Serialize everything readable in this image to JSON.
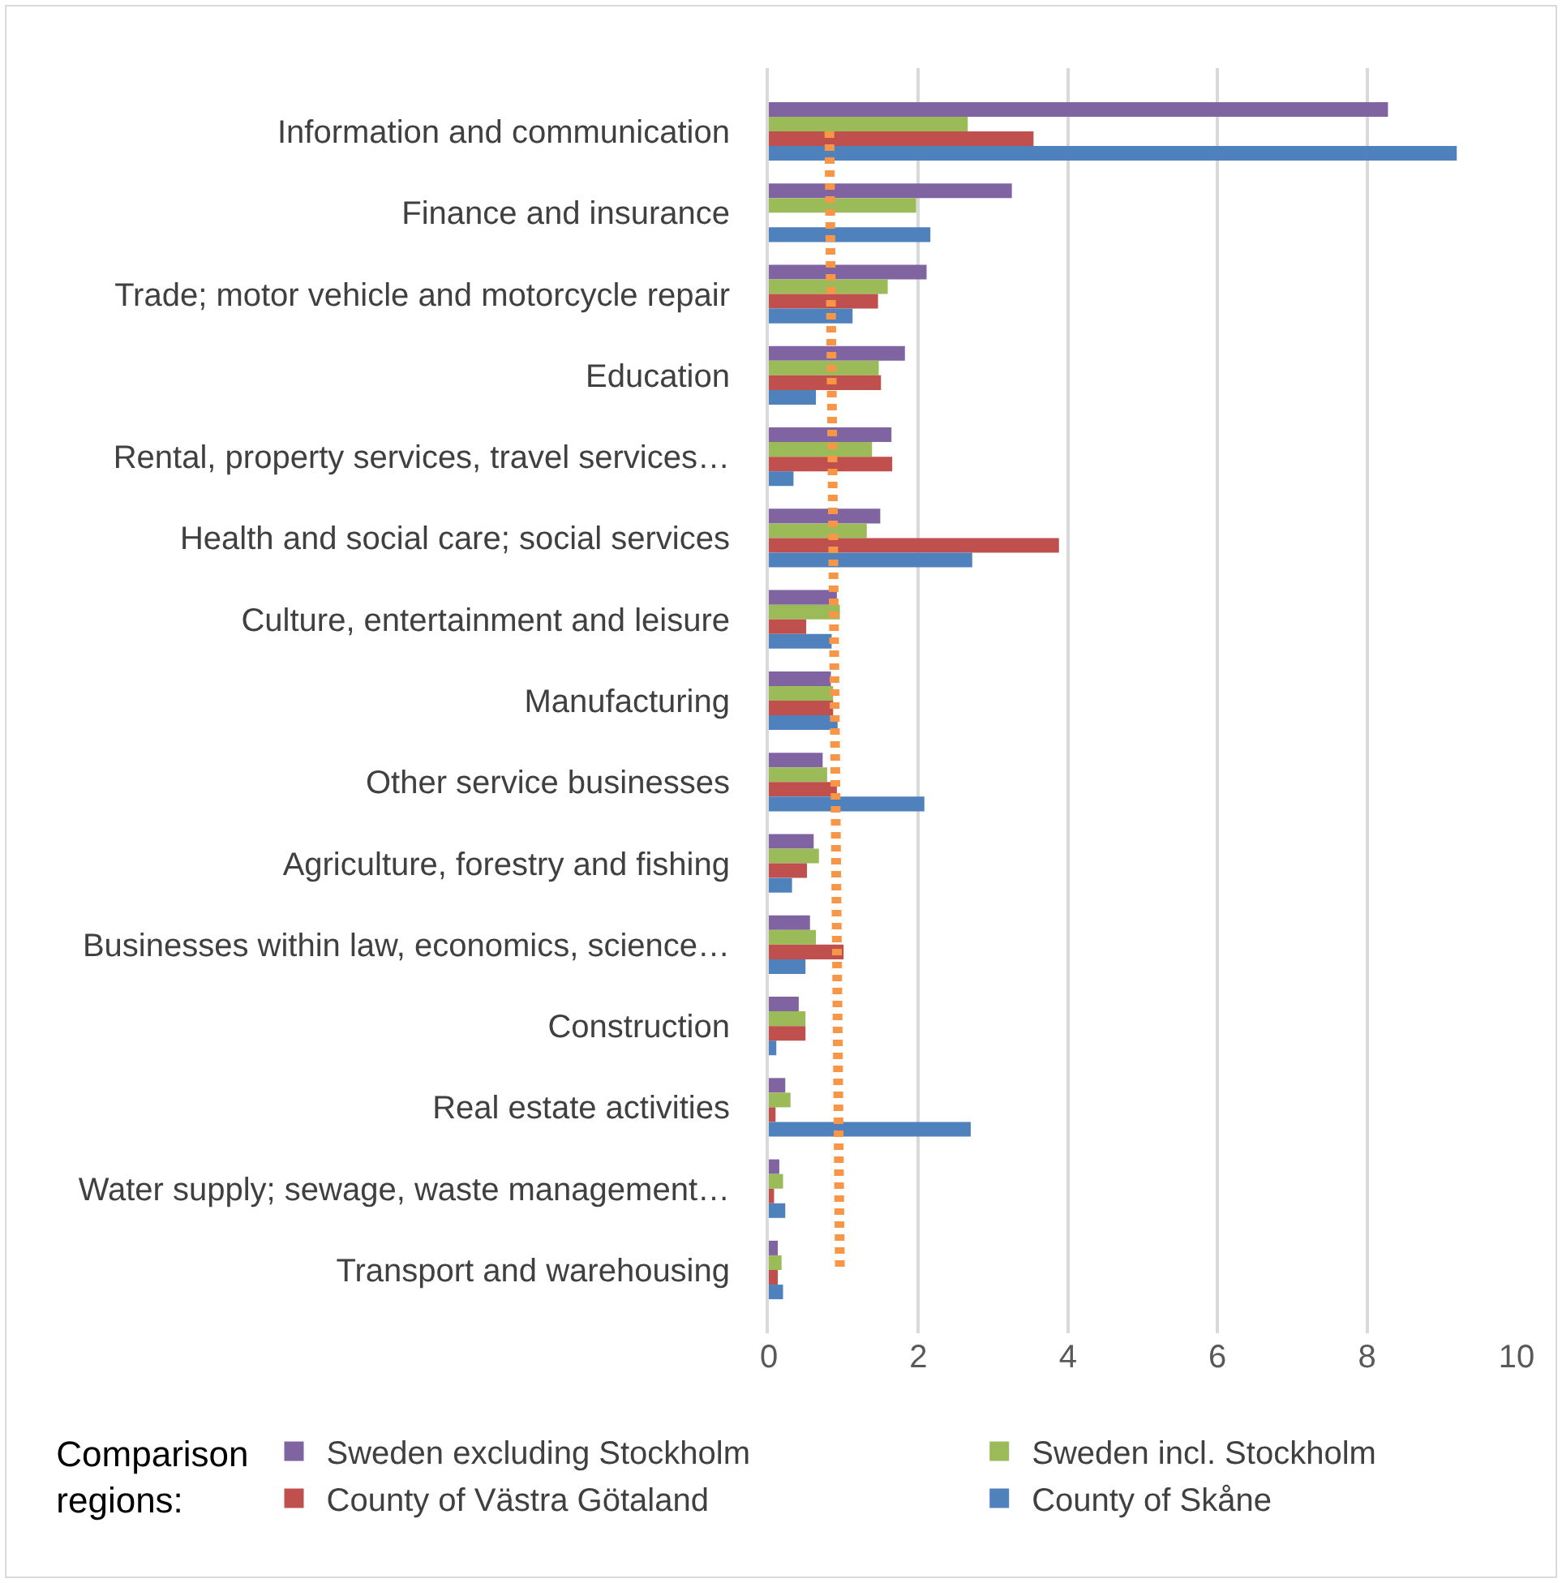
{
  "chart_data": {
    "type": "bar",
    "orientation": "horizontal",
    "categories": [
      "Information and communication",
      "Finance and insurance",
      "Trade; motor vehicle and motorcycle repair",
      "Education",
      "Rental, property services, travel services…",
      "Health and social care; social services",
      "Culture, entertainment and leisure",
      "Manufacturing",
      "Other service businesses",
      "Agriculture, forestry and fishing",
      "Businesses within law, economics, science…",
      "Construction",
      "Real estate activities",
      "Water supply; sewage, waste management…",
      "Transport and warehousing"
    ],
    "series": [
      {
        "name": "Sweden excluding Stockholm",
        "color": "#8064a2",
        "values": [
          8.28,
          3.25,
          2.11,
          1.82,
          1.64,
          1.49,
          0.91,
          0.83,
          0.72,
          0.6,
          0.55,
          0.4,
          0.22,
          0.14,
          0.12
        ]
      },
      {
        "name": "Sweden incl. Stockholm",
        "color": "#9bbb59",
        "values": [
          2.66,
          1.97,
          1.59,
          1.47,
          1.38,
          1.31,
          0.95,
          0.86,
          0.78,
          0.67,
          0.63,
          0.49,
          0.29,
          0.19,
          0.17
        ]
      },
      {
        "name": "County of Västra Götaland",
        "color": "#c0504d",
        "values": [
          3.54,
          null,
          1.46,
          1.5,
          1.65,
          3.88,
          0.5,
          0.86,
          0.91,
          0.51,
          1.0,
          0.49,
          0.09,
          0.07,
          0.12
        ]
      },
      {
        "name": "County of Skåne",
        "color": "#4f81bd",
        "values": [
          9.2,
          2.16,
          1.12,
          0.63,
          0.33,
          2.72,
          0.84,
          0.92,
          2.08,
          0.31,
          0.49,
          0.1,
          2.7,
          0.22,
          0.19
        ]
      },
      {
        "type": "line",
        "color": "#f79646",
        "line_style": "dotted",
        "values": [
          0.81,
          0.82,
          0.83,
          0.84,
          0.85,
          0.86,
          0.87,
          0.88,
          0.89,
          0.9,
          0.91,
          0.92,
          0.93,
          0.94,
          0.95
        ]
      }
    ],
    "xlim": [
      0,
      10
    ],
    "xticks": [
      0,
      2,
      4,
      6,
      8,
      10
    ],
    "grid": "x",
    "legend": "bottom",
    "legend_title": "Comparison regions:"
  }
}
